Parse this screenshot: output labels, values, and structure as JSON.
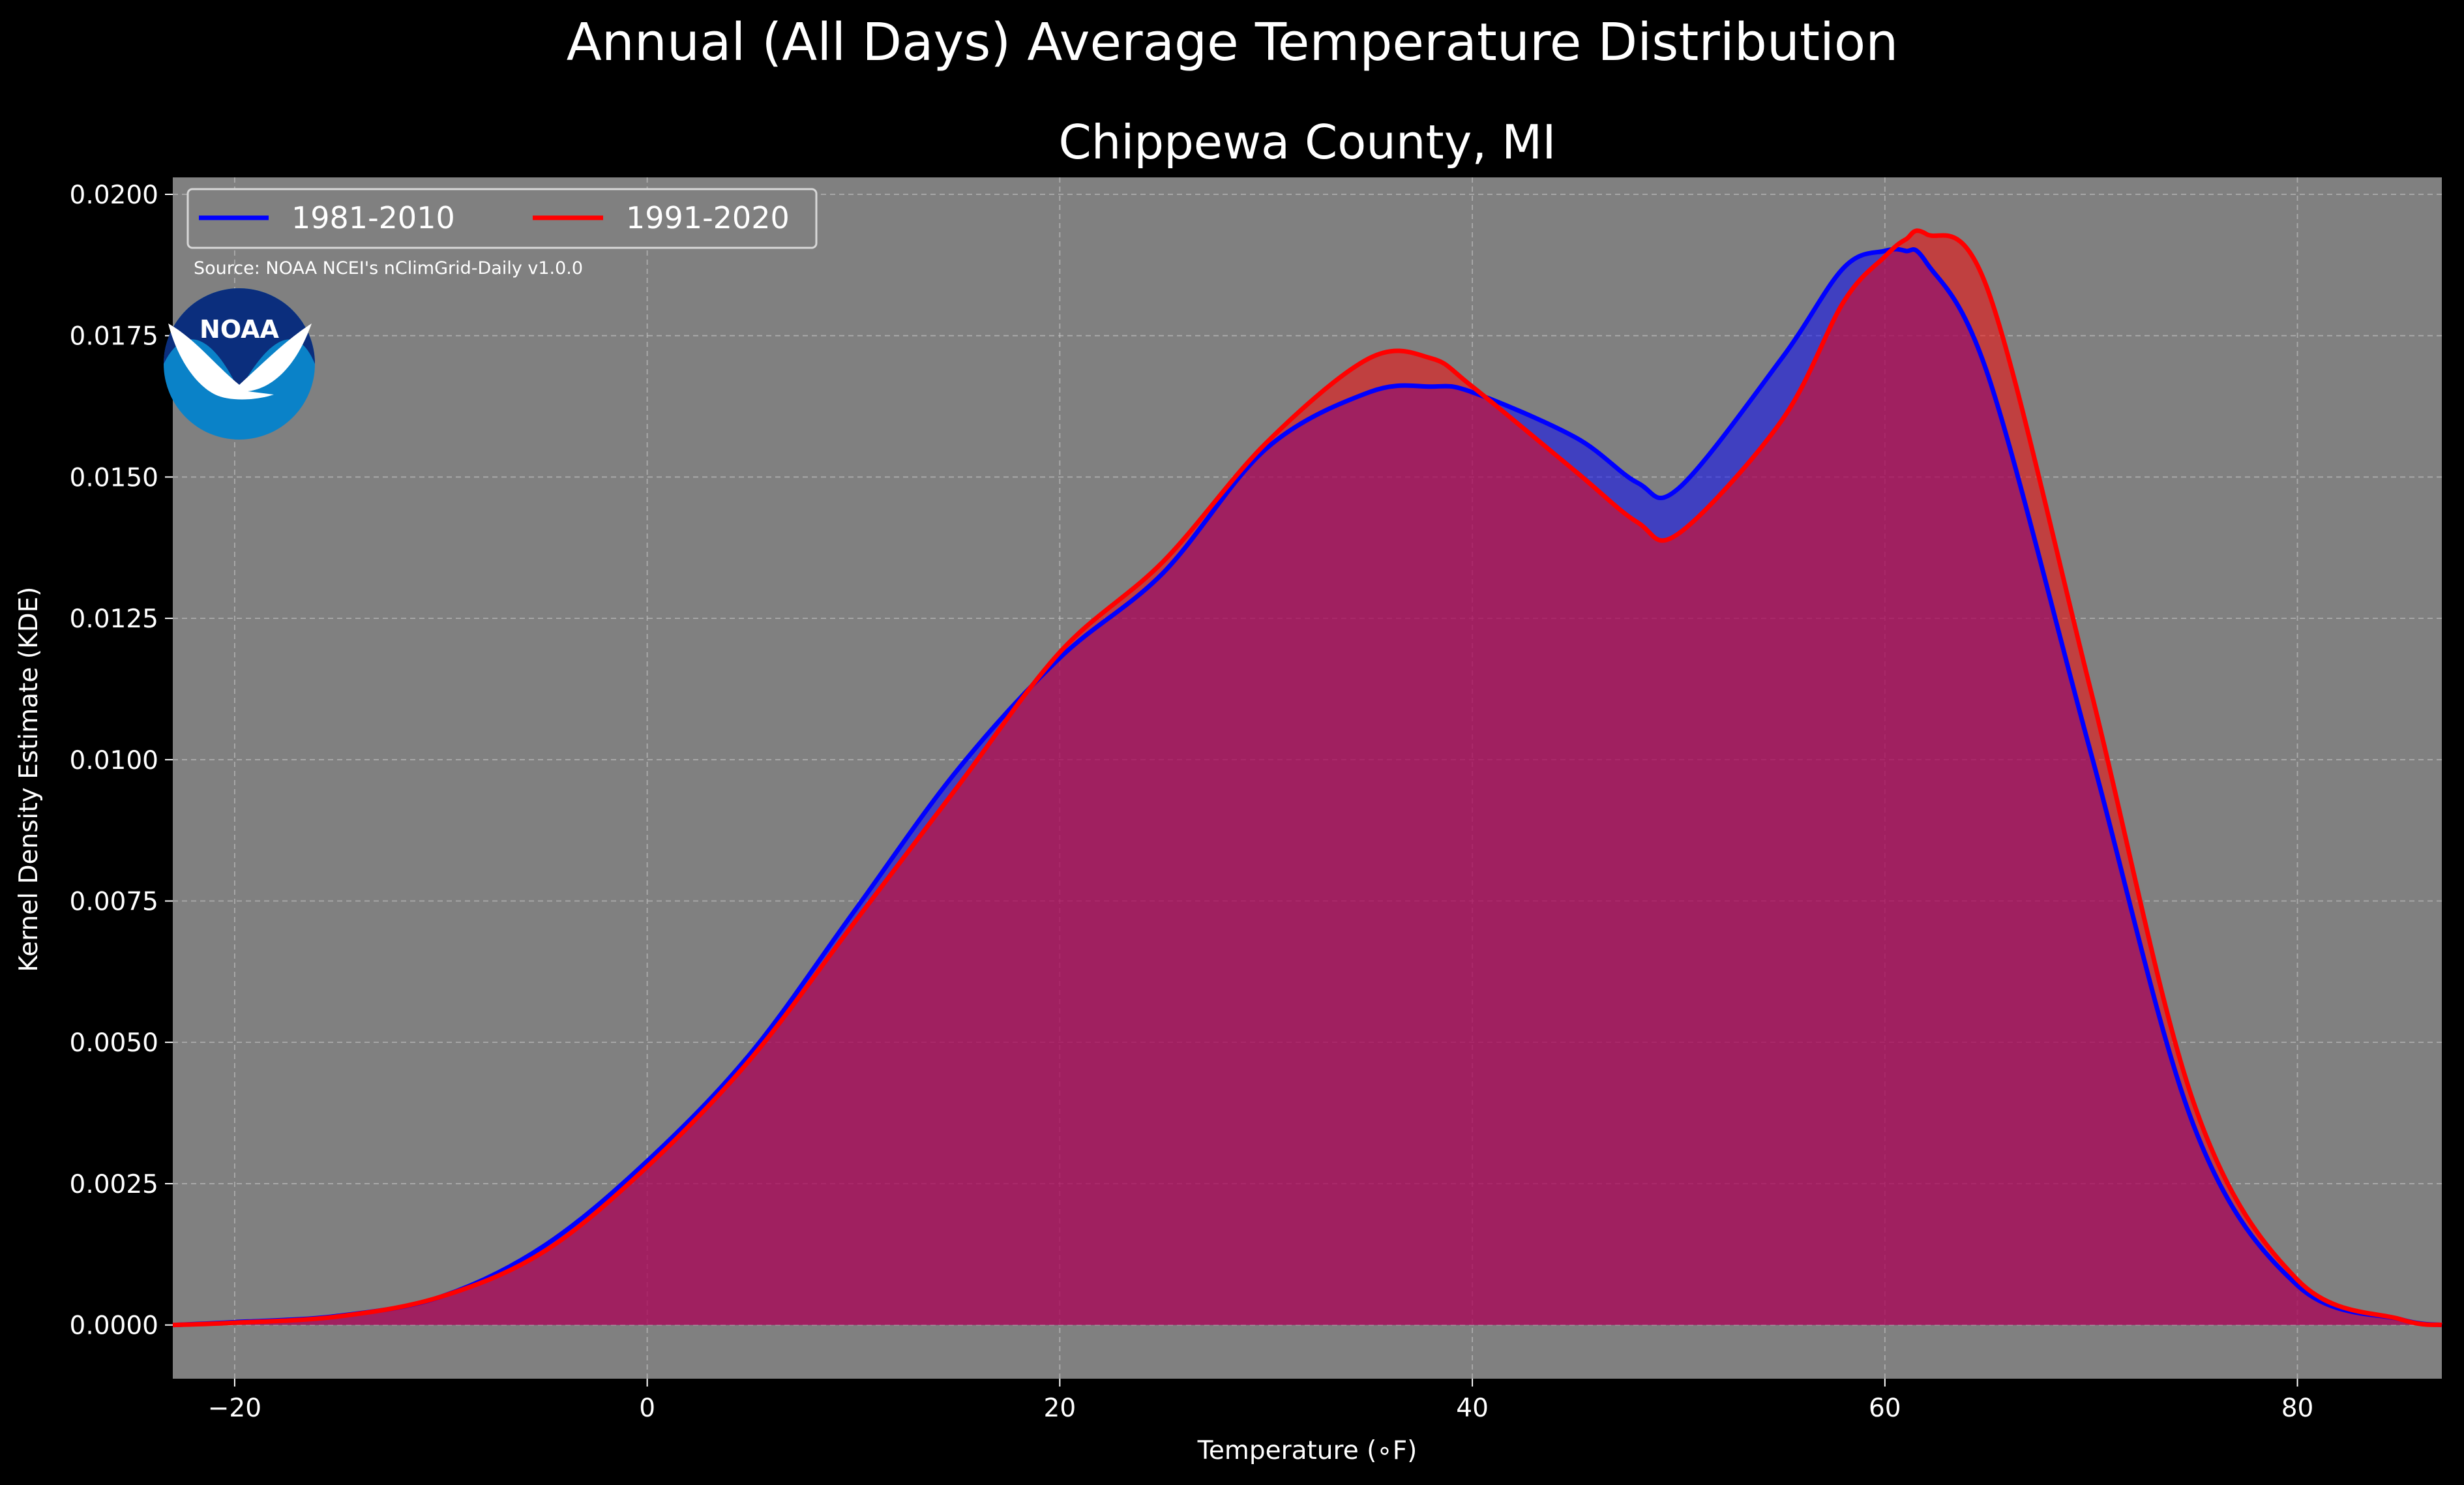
{
  "suptitle": "Annual (All Days) Average Temperature Distribution",
  "chart_data": {
    "type": "area",
    "title": "Chippewa County, MI",
    "xlabel": "Temperature ($^\\circ$F)",
    "xlabel_display": "Temperature (∘F)",
    "ylabel": "Kernel Density Estimate (KDE)",
    "xlim": [
      -23,
      87
    ],
    "ylim": [
      -0.00095,
      0.0203
    ],
    "xticks": [
      -20,
      0,
      20,
      40,
      60,
      80
    ],
    "xtick_labels": [
      "−20",
      "0",
      "20",
      "40",
      "60",
      "80"
    ],
    "yticks": [
      0.0,
      0.0025,
      0.005,
      0.0075,
      0.01,
      0.0125,
      0.015,
      0.0175,
      0.02
    ],
    "ytick_labels": [
      "0.0000",
      "0.0025",
      "0.0050",
      "0.0075",
      "0.0100",
      "0.0125",
      "0.0150",
      "0.0175",
      "0.0200"
    ],
    "grid": true,
    "legend_placement": "top-left",
    "background_color": "#808080",
    "source_text": "Source: NOAA NCEI's nClimGrid-Daily v1.0.0",
    "logo_text": "NOAA",
    "x": [
      -23,
      -20,
      -15,
      -10,
      -5,
      0,
      5,
      10,
      15,
      20,
      25,
      30,
      35,
      38,
      40,
      45,
      48,
      50,
      55,
      58,
      60,
      61,
      62,
      65,
      70,
      75,
      80,
      85,
      87
    ],
    "series": [
      {
        "name": "1981-2010",
        "color": "#0000ff",
        "fill": "#0000ff",
        "values": [
          0.0,
          5e-05,
          0.00016,
          0.0005,
          0.0014,
          0.0029,
          0.0048,
          0.0073,
          0.0098,
          0.0118,
          0.0133,
          0.0155,
          0.0165,
          0.0166,
          0.0165,
          0.0157,
          0.0149,
          0.0148,
          0.0171,
          0.0187,
          0.019,
          0.019,
          0.0188,
          0.0168,
          0.0101,
          0.0035,
          0.0007,
          0.0001,
          0.0
        ]
      },
      {
        "name": "1991-2020",
        "color": "#ff0000",
        "fill": "#ff0000",
        "values": [
          0.0,
          4e-05,
          0.00015,
          0.0005,
          0.0013,
          0.0028,
          0.0047,
          0.0071,
          0.0095,
          0.0119,
          0.0135,
          0.0156,
          0.0171,
          0.0171,
          0.0166,
          0.0151,
          0.0142,
          0.014,
          0.016,
          0.0181,
          0.0189,
          0.0192,
          0.0193,
          0.0183,
          0.0112,
          0.0039,
          0.0008,
          0.0001,
          0.0
        ]
      }
    ]
  }
}
